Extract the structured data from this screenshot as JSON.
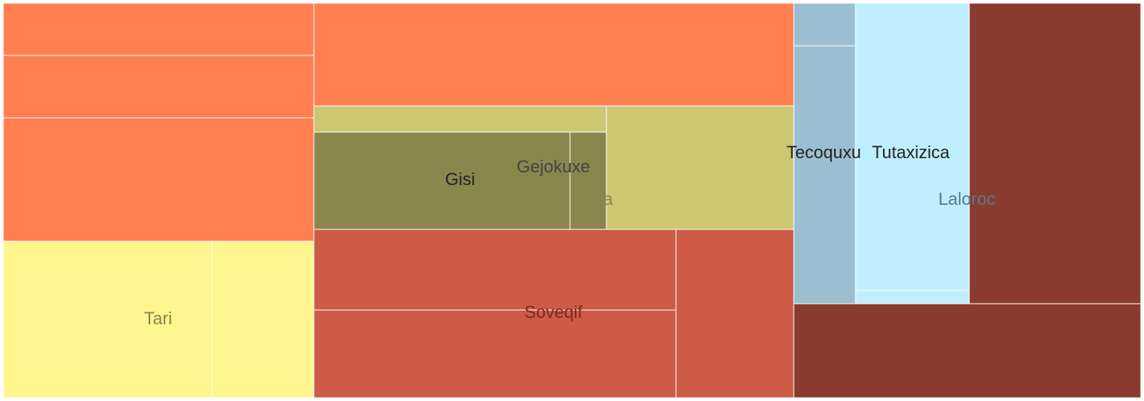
{
  "chart_data": {
    "type": "treemap",
    "title": "",
    "colors": {
      "orange": "#FF7F50",
      "olive_light": "#CDC673",
      "olive_dark": "#8B864E",
      "yellow": "#FFF68F",
      "red": "#CD5B45",
      "steel": "#9BBFD0",
      "sky": "#BFEFFF",
      "maroon": "#8B3A2F"
    },
    "groups": [
      {
        "label": "",
        "color": "orange",
        "values": [
          1,
          1.21,
          2.42,
          2.04
        ]
      },
      {
        "label": "Tari",
        "color": "yellow",
        "label_color": "#8B864E",
        "values": [
          2.05,
          1.0
        ]
      },
      {
        "label": "Hucumopa",
        "color": "olive_light",
        "label_color": "#8B864E",
        "values": [
          0.48,
          1.45
        ]
      },
      {
        "label": "Gisi",
        "color": "olive_dark",
        "label_color": "#222222",
        "values": [
          1.98
        ]
      },
      {
        "label": "Gejokuxe",
        "color": "olive_dark",
        "label_color": "#444444",
        "values": [
          0.28
        ]
      },
      {
        "label": "Soveqif",
        "color": "red",
        "label_color": "#7A2A1C",
        "values": [
          1.82,
          1.98,
          1.45
        ]
      },
      {
        "label": "Tecoquxu",
        "color": "steel",
        "label_color": "#222222",
        "values": [
          0.18,
          1.28
        ]
      },
      {
        "label": "Tutaxizica",
        "color": "sky",
        "label_color": "#222222",
        "values": [
          3.3,
          0.07
        ]
      },
      {
        "label": "Laloroc",
        "color": "maroon",
        "label_color": "#5A7A8A",
        "values": [
          3.44,
          1.7
        ]
      }
    ]
  }
}
